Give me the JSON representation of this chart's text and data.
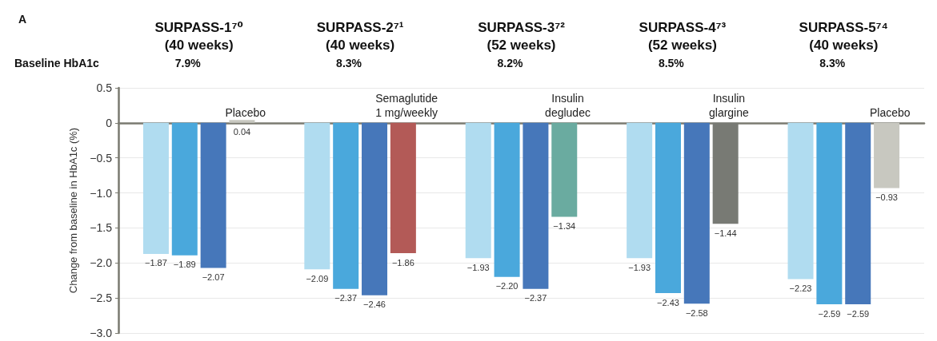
{
  "chart_data": {
    "type": "bar",
    "title": "A",
    "ylabel": "Change from baseline in HbA1c (%)",
    "categories": [
      "SURPASS-1⁷⁰\n(40 weeks)",
      "SURPASS-2⁷¹\n(40 weeks)",
      "SURPASS-3⁷²\n(52 weeks)",
      "SURPASS-4⁷³\n(52 weeks)",
      "SURPASS-5⁷⁴\n(40 weeks)"
    ],
    "series": [
      {
        "color": "#b0dcf0",
        "values": [
          -1.87,
          -2.09,
          -1.93,
          -1.93,
          -2.23
        ],
        "value_labels": [
          "−1.87",
          "−2.09",
          "−1.93",
          "−1.93",
          "−2.23"
        ]
      },
      {
        "color": "#4aa8dc",
        "values": [
          -1.89,
          -2.37,
          -2.2,
          -2.43,
          -2.59
        ],
        "value_labels": [
          "−1.89",
          "−2.37",
          "−2.20",
          "−2.43",
          "−2.59"
        ]
      },
      {
        "color": "#4677ba",
        "values": [
          -2.07,
          -2.46,
          -2.37,
          -2.58,
          -2.59
        ],
        "value_labels": [
          "−2.07",
          "−2.46",
          "−2.37",
          "−2.58",
          "−2.59"
        ]
      },
      {
        "colors": [
          "#c8c8c0",
          "#b35a57",
          "#6aaba0",
          "#787a74",
          "#c8c8c0"
        ],
        "values": [
          0.04,
          -1.86,
          -1.34,
          -1.44,
          -0.93
        ],
        "value_labels": [
          "0.04",
          "−1.86",
          "−1.34",
          "−1.44",
          "−0.93"
        ]
      }
    ],
    "ylim": [
      -3.0,
      0.5
    ],
    "yticks": [
      0.5,
      0,
      {
        "value": -0.5,
        "label": "−0.5"
      },
      {
        "value": -1.0,
        "label": "−1.0"
      },
      {
        "value": -1.5,
        "label": "−1.5"
      },
      {
        "value": -2.0,
        "label": "−2.0"
      },
      {
        "value": -2.5,
        "label": "−2.5"
      },
      {
        "value": -3.0,
        "label": "−3.0"
      }
    ],
    "grid": "y",
    "annotations": [
      "Baseline HbA1c",
      "7.9%",
      "8.3%",
      "8.2%",
      "8.5%",
      "8.3%",
      {
        "text": "Placebo",
        "x": "SURPASS-1⁷⁰\n(40 weeks)",
        "y": 0
      },
      {
        "text": "Semaglutide\n1 mg/weekly",
        "x": "SURPASS-2⁷¹\n(40 weeks)",
        "y": 0
      },
      {
        "text": "Insulin\ndegludec",
        "x": "SURPASS-3⁷²\n(52 weeks)",
        "y": 0
      },
      {
        "text": "Insulin\nglargine",
        "x": "SURPASS-4⁷³\n(52 weeks)",
        "y": 0
      },
      {
        "text": "Placebo",
        "x": "SURPASS-5⁷⁴\n(40 weeks)",
        "y": 0
      }
    ]
  }
}
